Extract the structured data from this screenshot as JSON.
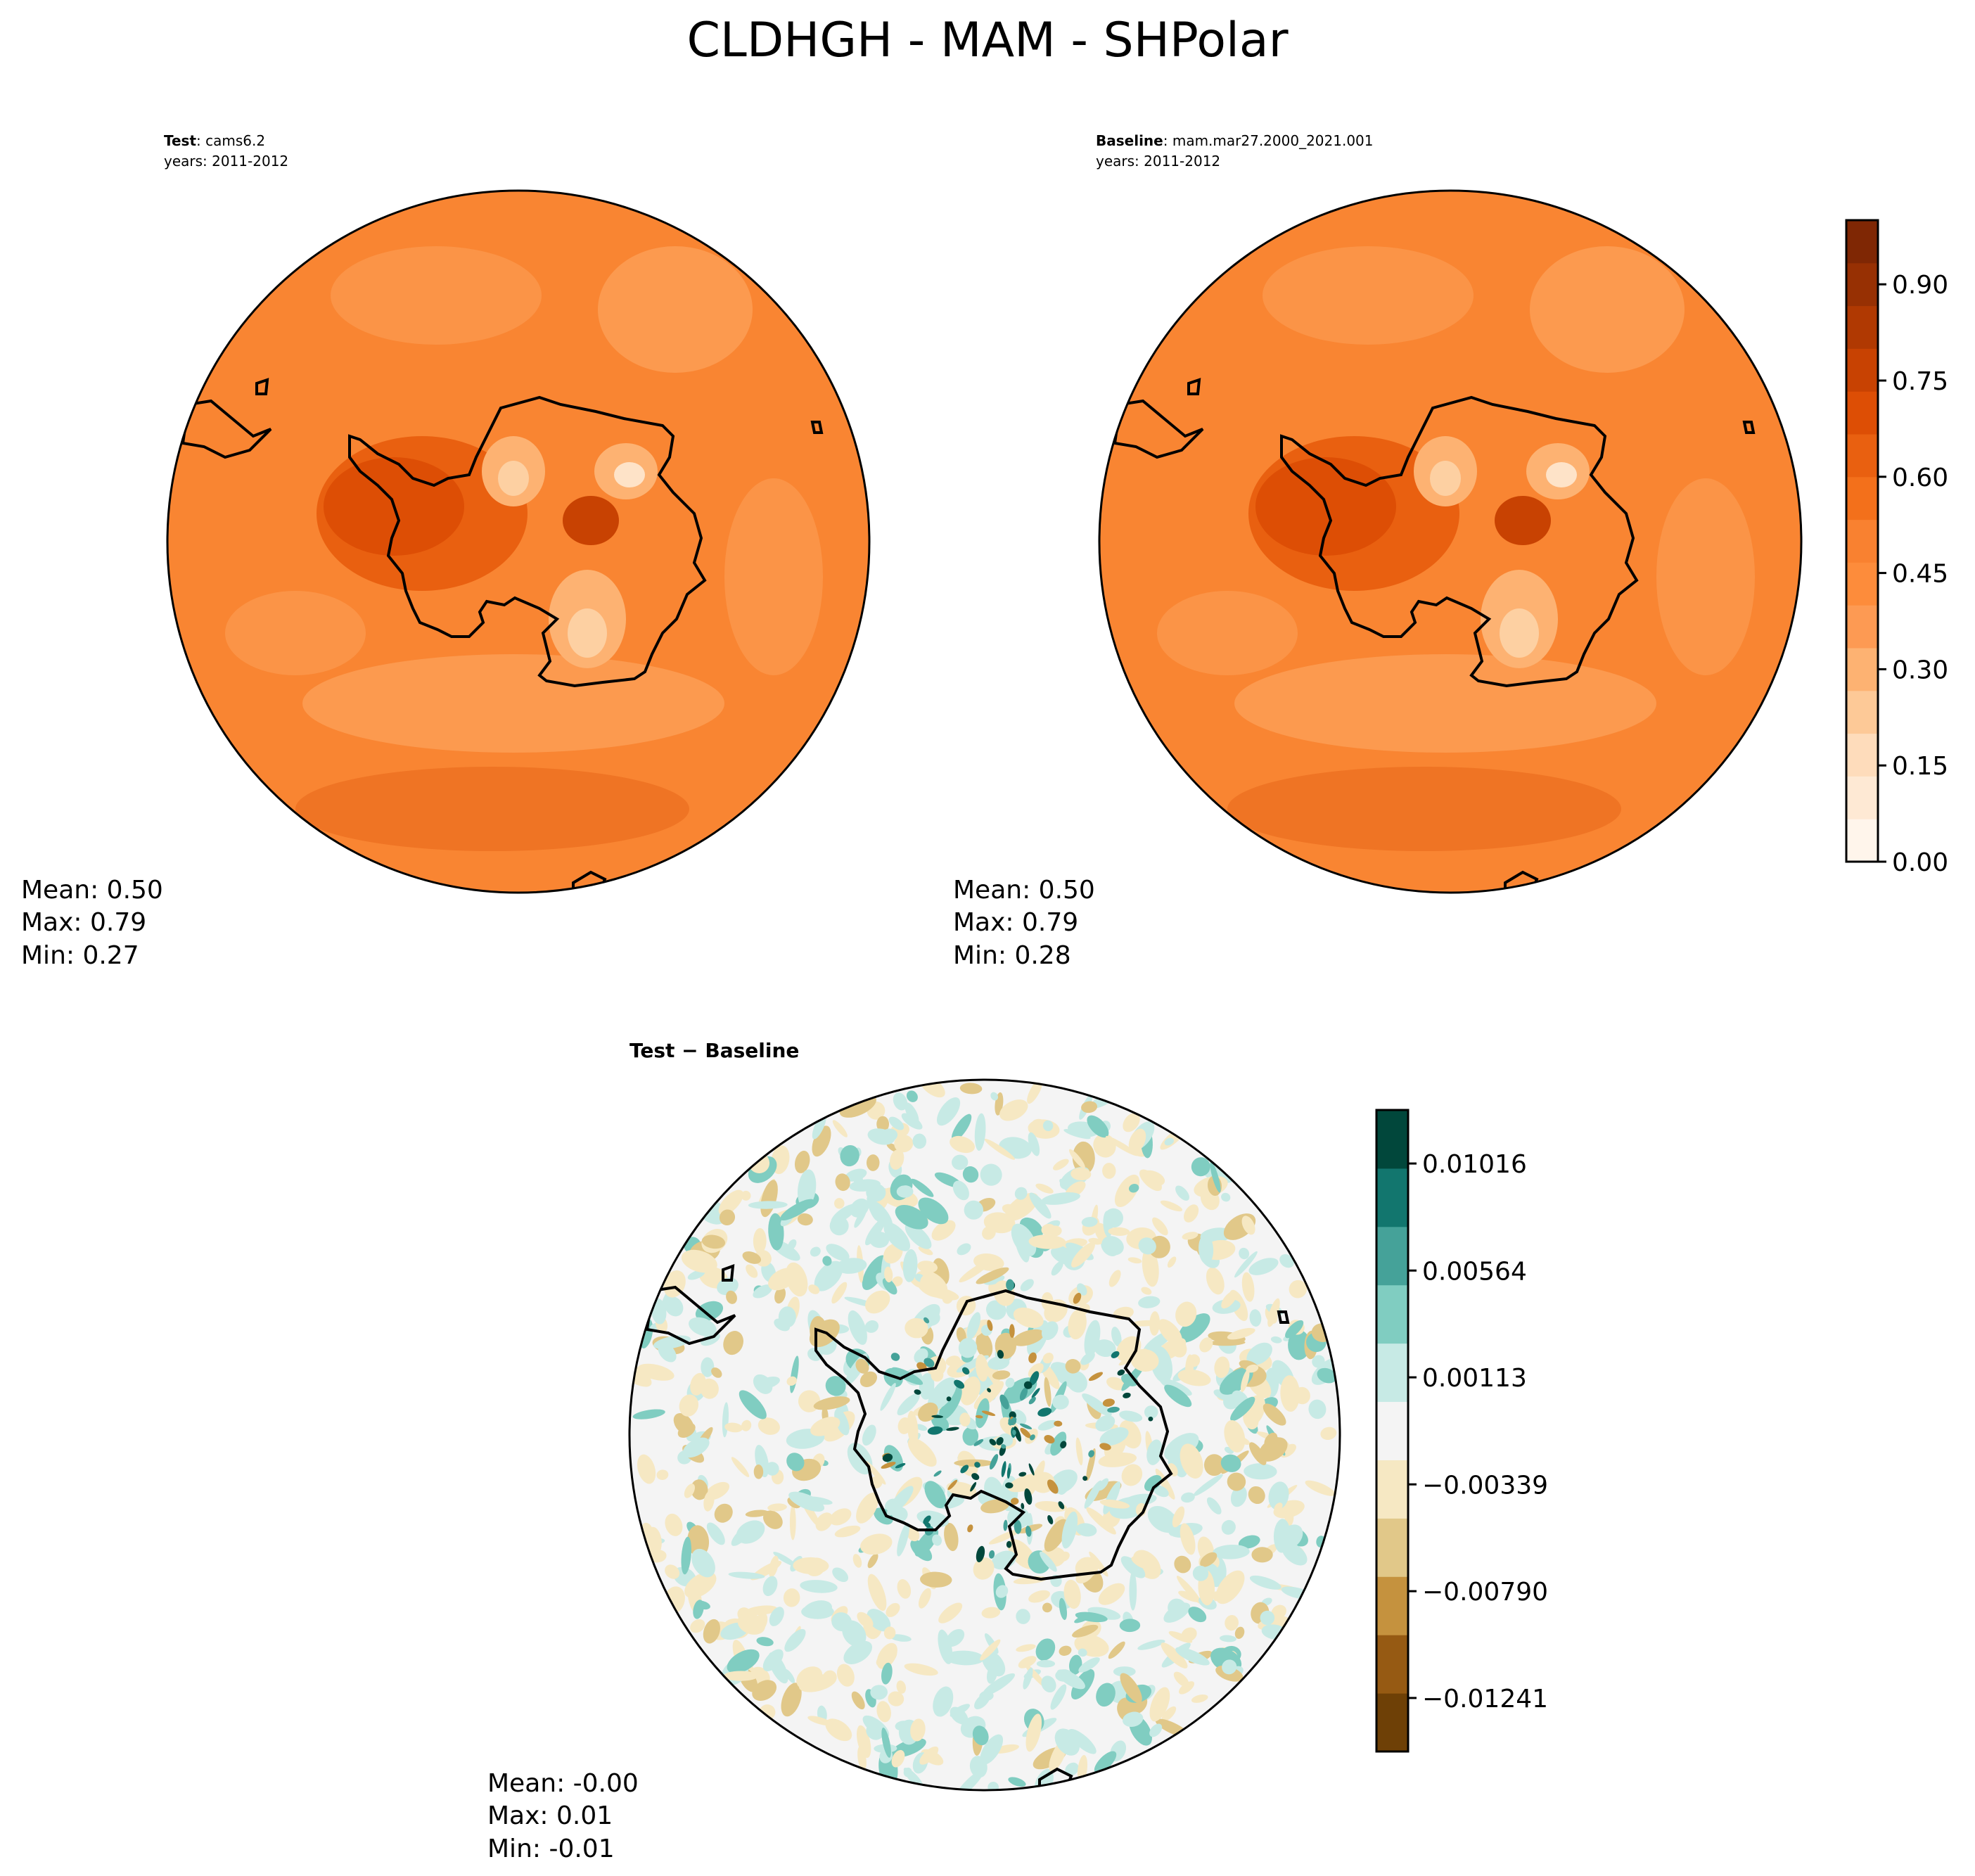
{
  "figure": {
    "title": "CLDHGH - MAM - SHPolar"
  },
  "panels": [
    {
      "label_bold": "Test",
      "label_rest": ": cams6.2",
      "years": "years: 2011-2012",
      "stats": {
        "mean": "Mean:  0.50",
        "max": "Max:  0.79",
        "min": "Min:  0.27"
      }
    },
    {
      "label_bold": "Baseline",
      "label_rest": ": mam.mar27.2000_2021.001",
      "years": "years: 2011-2012",
      "stats": {
        "mean": "Mean:  0.50",
        "max": "Max:  0.79",
        "min": "Min:  0.28"
      }
    },
    {
      "label_bold": "Test − Baseline",
      "stats": {
        "mean": "Mean: -0.00",
        "max": "Max:  0.01",
        "min": "Min: -0.01"
      }
    }
  ],
  "colors": {
    "oranges": [
      "#fff5eb",
      "#fee9d4",
      "#fedcbb",
      "#fdc997",
      "#fdb272",
      "#fd9a53",
      "#fd8c3b",
      "#f98130",
      "#f3701b",
      "#e96010",
      "#dd4e05",
      "#c84202",
      "#b03902",
      "#973003",
      "#7f2704"
    ],
    "diverging": [
      "#6e4006",
      "#965a13",
      "#c5923e",
      "#e1c889",
      "#f6e8c3",
      "#f4f4f4",
      "#c7eae5",
      "#80cdc1",
      "#45a299",
      "#12766e",
      "#01473b"
    ],
    "coast": "#000000"
  },
  "chart_data": [
    {
      "type": "heatmap",
      "title": "Test: cams6.2",
      "projection": "south polar stereographic",
      "field": "CLDHGH",
      "season": "MAM",
      "region": "SHPolar",
      "mean": 0.5,
      "max": 0.79,
      "min": 0.27,
      "colorbar": {
        "range": [
          0.0,
          1.0
        ],
        "ticks": [
          0.0,
          0.15,
          0.3,
          0.45,
          0.6,
          0.75,
          0.9
        ],
        "tick_labels": [
          "0.00",
          "0.15",
          "0.30",
          "0.45",
          "0.60",
          "0.75",
          "0.90"
        ]
      }
    },
    {
      "type": "heatmap",
      "title": "Baseline: mam.mar27.2000_2021.001",
      "projection": "south polar stereographic",
      "mean": 0.5,
      "max": 0.79,
      "min": 0.28,
      "colorbar": "shared with Test"
    },
    {
      "type": "heatmap",
      "title": "Test − Baseline",
      "projection": "south polar stereographic",
      "mean": -0.0,
      "max": 0.01,
      "min": -0.01,
      "colorbar": {
        "range": [
          -0.01467,
          0.01242
        ],
        "ticks": [
          -0.01241,
          -0.0079,
          -0.00339,
          0.00113,
          0.00564,
          0.01016
        ],
        "tick_labels": [
          "−0.01241",
          "−0.00790",
          "−0.00339",
          "0.00113",
          "0.00564",
          "0.01016"
        ]
      }
    }
  ]
}
